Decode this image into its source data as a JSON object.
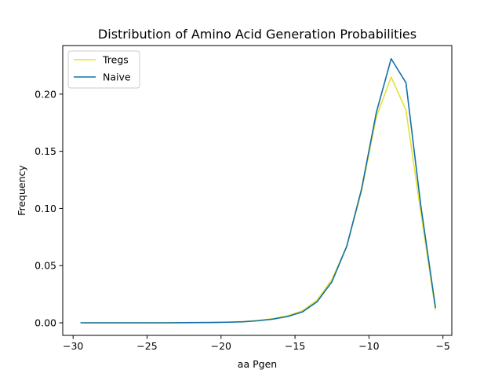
{
  "chart_data": {
    "type": "line",
    "title": "Distribution of Amino Acid Generation Probabilities",
    "xlabel": "aa Pgen",
    "ylabel": "Frequency",
    "xlim": [
      -30.7,
      -4.4
    ],
    "ylim": [
      -0.011,
      0.2425
    ],
    "xticks": [
      -30,
      -25,
      -20,
      -15,
      -10,
      -5
    ],
    "xtick_labels": [
      "−30",
      "−25",
      "−20",
      "−15",
      "−10",
      "−5"
    ],
    "yticks": [
      0.0,
      0.05,
      0.1,
      0.15,
      0.2
    ],
    "ytick_labels": [
      "0.00",
      "0.05",
      "0.10",
      "0.15",
      "0.20"
    ],
    "grid": false,
    "legend_position": "upper-left",
    "series": [
      {
        "name": "Tregs",
        "color": "#e8e035",
        "x": [
          -29.5,
          -28.5,
          -27.5,
          -26.5,
          -25.5,
          -24.5,
          -23.5,
          -22.5,
          -21.5,
          -20.5,
          -19.5,
          -18.5,
          -17.5,
          -16.5,
          -15.5,
          -14.5,
          -13.5,
          -12.5,
          -11.5,
          -10.5,
          -9.5,
          -8.5,
          -7.5,
          -6.5,
          -5.5
        ],
        "values": [
          0.0,
          0.0,
          0.0,
          0.0,
          0.0,
          0.0,
          0.0001,
          0.0001,
          0.0002,
          0.0003,
          0.0006,
          0.0011,
          0.0021,
          0.0036,
          0.0062,
          0.0105,
          0.02,
          0.038,
          0.067,
          0.115,
          0.18,
          0.215,
          0.186,
          0.097,
          0.011
        ]
      },
      {
        "name": "Naive",
        "color": "#1170aa",
        "x": [
          -29.5,
          -28.5,
          -27.5,
          -26.5,
          -25.5,
          -24.5,
          -23.5,
          -22.5,
          -21.5,
          -20.5,
          -19.5,
          -18.5,
          -17.5,
          -16.5,
          -15.5,
          -14.5,
          -13.5,
          -12.5,
          -11.5,
          -10.5,
          -9.5,
          -8.5,
          -7.5,
          -6.5,
          -5.5
        ],
        "values": [
          0.0,
          0.0,
          0.0,
          0.0,
          0.0,
          0.0,
          0.0,
          0.0001,
          0.0002,
          0.0003,
          0.0005,
          0.0009,
          0.0018,
          0.0032,
          0.0055,
          0.0095,
          0.0185,
          0.036,
          0.067,
          0.117,
          0.184,
          0.231,
          0.21,
          0.103,
          0.013
        ]
      }
    ]
  }
}
